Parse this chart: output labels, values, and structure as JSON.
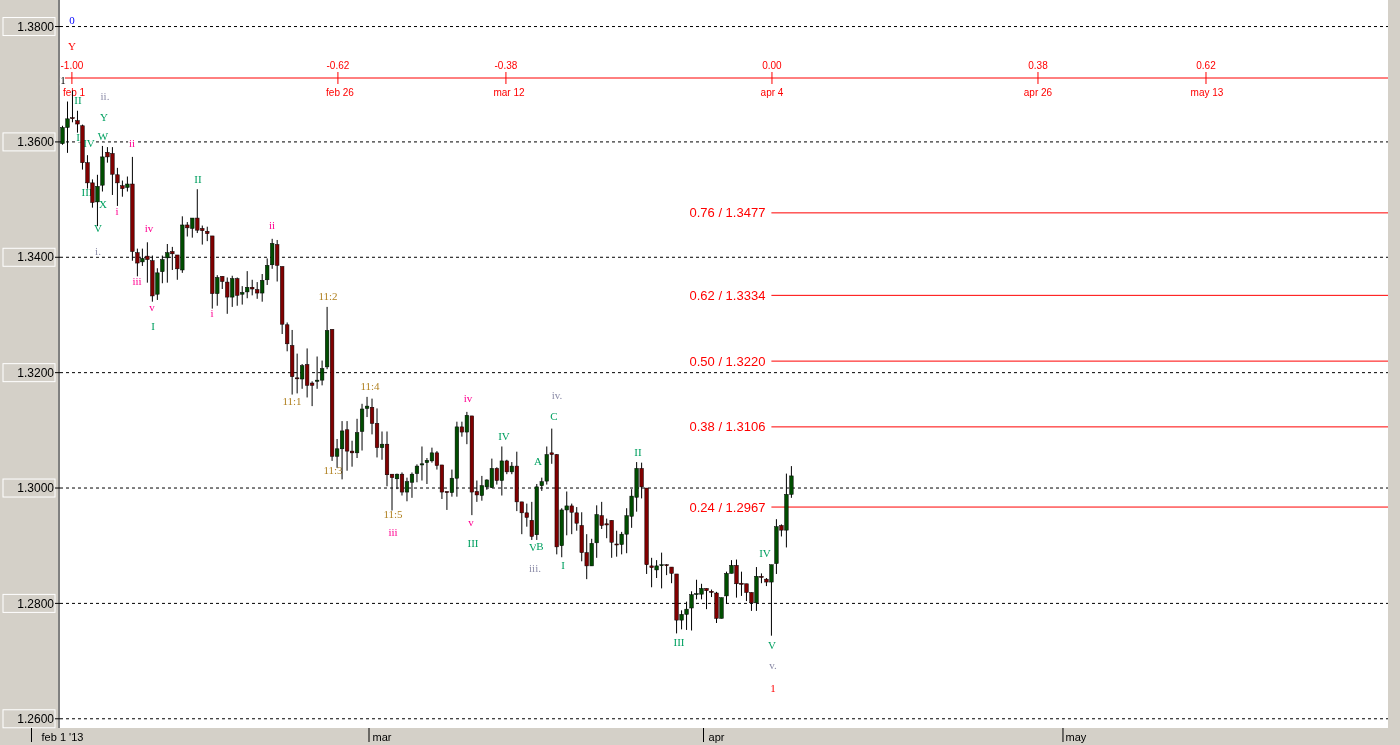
{
  "chart_data": {
    "type": "candlestick",
    "categories": [
      "feb 1 '13",
      null,
      null,
      null,
      null,
      null,
      null,
      null,
      null,
      null,
      null,
      null,
      null,
      null,
      null,
      null,
      null,
      null,
      null,
      null,
      null,
      null,
      null,
      null,
      null,
      null,
      null,
      null,
      null,
      null,
      null,
      null,
      null,
      null,
      null,
      null,
      null,
      null,
      null,
      null,
      null,
      null,
      null,
      null,
      null,
      null,
      null,
      null,
      null,
      null,
      null,
      null,
      null,
      null,
      null,
      null,
      null,
      null,
      null,
      null,
      null,
      null,
      null,
      null,
      "mar",
      null,
      null,
      null,
      null,
      null,
      null,
      null,
      null,
      null,
      null,
      null,
      null,
      null,
      null,
      null,
      null,
      null,
      null,
      null,
      null,
      null,
      null,
      null,
      null,
      null,
      null,
      null,
      null,
      null,
      null,
      null,
      null,
      null,
      null,
      null,
      null,
      null,
      null,
      null,
      null,
      null,
      null,
      null,
      null,
      null,
      null,
      null,
      null,
      null,
      null,
      null,
      null,
      null,
      null,
      null,
      null,
      null,
      null,
      null,
      null,
      null,
      null,
      null,
      null,
      null,
      null,
      "apr",
      null,
      null,
      null,
      null,
      null,
      null,
      null,
      null,
      null,
      null,
      null,
      null,
      null,
      null,
      null,
      null,
      null,
      null,
      null,
      null,
      null,
      null,
      null,
      null,
      null,
      null,
      null,
      null,
      null,
      null,
      null,
      null,
      null,
      null,
      null,
      null,
      null,
      null,
      null,
      null,
      null,
      null,
      null,
      null,
      null,
      null,
      null,
      null,
      null,
      null,
      null,
      null,
      null,
      null,
      null,
      null,
      null,
      null,
      null,
      null,
      null,
      null,
      null,
      null,
      null,
      null,
      null,
      null,
      null,
      null,
      null,
      "may",
      null,
      null,
      null,
      null,
      null,
      null,
      null,
      null,
      null,
      null,
      null,
      null,
      null,
      null,
      null,
      null,
      null,
      null,
      null,
      null,
      null,
      null,
      null,
      null,
      null,
      null,
      null,
      null,
      null,
      null,
      null,
      null,
      null,
      null,
      null,
      null,
      null,
      null,
      null,
      null,
      null,
      null,
      null,
      null,
      null,
      null,
      null,
      null,
      null,
      null,
      null,
      null,
      null,
      null,
      null,
      null,
      null,
      null,
      null,
      null,
      null,
      null
    ],
    "ohlc": [
      [
        1.3597,
        1.3628,
        1.3595,
        1.3625
      ],
      [
        1.3625,
        1.367,
        1.3581,
        1.364
      ],
      [
        1.3642,
        1.3689,
        1.3634,
        1.3641
      ],
      [
        1.3637,
        1.3654,
        1.3616,
        1.3631
      ],
      [
        1.3628,
        1.363,
        1.3552,
        1.3564
      ],
      [
        1.3564,
        1.3577,
        1.3519,
        1.3529
      ],
      [
        1.3529,
        1.3535,
        1.3486,
        1.3495
      ],
      [
        1.3496,
        1.3543,
        1.3454,
        1.3523
      ],
      [
        1.3525,
        1.3593,
        1.3514,
        1.3574
      ],
      [
        1.3582,
        1.3591,
        1.3564,
        1.3574
      ],
      [
        1.358,
        1.3591,
        1.3508,
        1.3544
      ],
      [
        1.3543,
        1.3555,
        1.3489,
        1.3529
      ],
      [
        1.3524,
        1.3533,
        1.3505,
        1.3519
      ],
      [
        1.3521,
        1.354,
        1.3514,
        1.3527
      ],
      [
        1.3527,
        1.3574,
        1.3394,
        1.341
      ],
      [
        1.3408,
        1.3415,
        1.3367,
        1.339
      ],
      [
        1.3392,
        1.3415,
        1.3385,
        1.3398
      ],
      [
        1.3402,
        1.3426,
        1.3356,
        1.3396
      ],
      [
        1.3394,
        1.3403,
        1.3323,
        1.3333
      ],
      [
        1.3336,
        1.3381,
        1.3326,
        1.3373
      ],
      [
        1.3375,
        1.3403,
        1.3355,
        1.3396
      ],
      [
        1.3399,
        1.3423,
        1.3356,
        1.3408
      ],
      [
        1.341,
        1.3418,
        1.3378,
        1.3406
      ],
      [
        1.3404,
        1.3404,
        1.3361,
        1.338
      ],
      [
        1.3378,
        1.3471,
        1.3373,
        1.3456
      ],
      [
        1.3456,
        1.3461,
        1.3436,
        1.3451
      ],
      [
        1.345,
        1.3468,
        1.3434,
        1.3468
      ],
      [
        1.3468,
        1.3518,
        1.3442,
        1.3447
      ],
      [
        1.345,
        1.3455,
        1.3422,
        1.3446
      ],
      [
        1.3445,
        1.3453,
        1.3428,
        1.3441
      ],
      [
        1.3437,
        1.3437,
        1.3311,
        1.3337
      ],
      [
        1.3337,
        1.3369,
        1.3316,
        1.3365
      ],
      [
        1.3367,
        1.3367,
        1.3345,
        1.3358
      ],
      [
        1.3357,
        1.3365,
        1.3302,
        1.3331
      ],
      [
        1.3331,
        1.3368,
        1.3314,
        1.3363
      ],
      [
        1.3363,
        1.3365,
        1.3316,
        1.3334
      ],
      [
        1.3336,
        1.335,
        1.3318,
        1.3339
      ],
      [
        1.334,
        1.3376,
        1.3329,
        1.3348
      ],
      [
        1.3348,
        1.3361,
        1.3334,
        1.3345
      ],
      [
        1.3344,
        1.3357,
        1.3328,
        1.3338
      ],
      [
        1.3338,
        1.3371,
        1.3323,
        1.336
      ],
      [
        1.3361,
        1.3398,
        1.3352,
        1.3386
      ],
      [
        1.3387,
        1.3432,
        1.338,
        1.3424
      ],
      [
        1.3422,
        1.343,
        1.3358,
        1.3386
      ],
      [
        1.3384,
        1.3384,
        1.3267,
        1.3284
      ],
      [
        1.3283,
        1.3287,
        1.3237,
        1.325
      ],
      [
        1.3247,
        1.3274,
        1.3162,
        1.3193
      ],
      [
        1.3191,
        1.3233,
        1.3164,
        1.319
      ],
      [
        1.3189,
        1.3215,
        1.3172,
        1.3212
      ],
      [
        1.3214,
        1.3242,
        1.3157,
        1.3178
      ],
      [
        1.3182,
        1.3185,
        1.3142,
        1.3178
      ],
      [
        1.3185,
        1.3228,
        1.3172,
        1.3187
      ],
      [
        1.3187,
        1.3221,
        1.3178,
        1.3207
      ],
      [
        1.321,
        1.3314,
        1.3206,
        1.3273
      ],
      [
        1.3275,
        1.3275,
        1.3047,
        1.3055
      ],
      [
        1.3055,
        1.3085,
        1.3035,
        1.3068
      ],
      [
        1.3068,
        1.3116,
        1.3015,
        1.3099
      ],
      [
        1.3101,
        1.3116,
        1.303,
        1.3064
      ],
      [
        1.3064,
        1.3082,
        1.3037,
        1.3061
      ],
      [
        1.3061,
        1.312,
        1.3052,
        1.3096
      ],
      [
        1.3098,
        1.3146,
        1.3065,
        1.3137
      ],
      [
        1.3138,
        1.3158,
        1.3123,
        1.3142
      ],
      [
        1.314,
        1.3155,
        1.3093,
        1.3112
      ],
      [
        1.3112,
        1.3138,
        1.3053,
        1.307
      ],
      [
        1.307,
        1.3098,
        1.3049,
        1.3076
      ],
      [
        1.3076,
        1.3098,
        1.3003,
        1.3023
      ],
      [
        1.3024,
        1.3024,
        1.2961,
        1.3018
      ],
      [
        1.3016,
        1.3025,
        1.2998,
        1.3024
      ],
      [
        1.3024,
        1.3027,
        1.2987,
        1.2993
      ],
      [
        1.2993,
        1.3018,
        1.2977,
        1.3011
      ],
      [
        1.301,
        1.3027,
        1.2983,
        1.3024
      ],
      [
        1.3025,
        1.3041,
        1.301,
        1.3038
      ],
      [
        1.304,
        1.3072,
        1.3013,
        1.3042
      ],
      [
        1.3044,
        1.3052,
        1.3007,
        1.3048
      ],
      [
        1.3047,
        1.307,
        1.3044,
        1.3061
      ],
      [
        1.3061,
        1.3064,
        1.3032,
        1.3039
      ],
      [
        1.304,
        1.304,
        1.2981,
        1.2993
      ],
      [
        1.2994,
        1.2994,
        1.2962,
        1.2992
      ],
      [
        1.2992,
        1.3032,
        1.2985,
        1.3017
      ],
      [
        1.3017,
        1.3115,
        1.2985,
        1.3106
      ],
      [
        1.3106,
        1.3115,
        1.3089,
        1.3097
      ],
      [
        1.3097,
        1.3132,
        1.3076,
        1.3126
      ],
      [
        1.3125,
        1.3125,
        1.2953,
        1.2993
      ],
      [
        1.2994,
        1.3013,
        1.2976,
        1.2988
      ],
      [
        1.2987,
        1.3021,
        1.2978,
        1.3004
      ],
      [
        1.3002,
        1.3015,
        1.2997,
        1.3014
      ],
      [
        1.3001,
        1.3051,
        1.3,
        1.3034
      ],
      [
        1.3034,
        1.3036,
        1.3006,
        1.3013
      ],
      [
        1.3013,
        1.3072,
        1.2987,
        1.3047
      ],
      [
        1.3047,
        1.3049,
        1.3024,
        1.3028
      ],
      [
        1.3028,
        1.3045,
        1.3024,
        1.3038
      ],
      [
        1.3038,
        1.3063,
        1.296,
        1.2976
      ],
      [
        1.2976,
        1.2976,
        1.292,
        1.2957
      ],
      [
        1.2957,
        1.2973,
        1.2933,
        1.2949
      ],
      [
        1.2944,
        1.2976,
        1.291,
        1.2916
      ],
      [
        1.2919,
        1.3007,
        1.291,
        1.3002
      ],
      [
        1.3004,
        1.3018,
        1.2995,
        1.3011
      ],
      [
        1.3012,
        1.3072,
        1.3006,
        1.3058
      ],
      [
        1.3061,
        1.3103,
        1.3042,
        1.3058
      ],
      [
        1.3058,
        1.3059,
        1.2885,
        1.2898
      ],
      [
        1.29,
        1.2965,
        1.288,
        1.2962
      ],
      [
        1.2962,
        1.2994,
        1.2918,
        1.2969
      ],
      [
        1.2969,
        1.2973,
        1.292,
        1.2958
      ],
      [
        1.2957,
        1.2967,
        1.2926,
        1.2939
      ],
      [
        1.2935,
        1.2958,
        1.2873,
        1.2888
      ],
      [
        1.2888,
        1.292,
        1.2842,
        1.2865
      ],
      [
        1.2865,
        1.2912,
        1.2865,
        1.2904
      ],
      [
        1.2905,
        1.297,
        1.2879,
        1.2954
      ],
      [
        1.2952,
        1.2976,
        1.2929,
        1.2935
      ],
      [
        1.2938,
        1.2947,
        1.2913,
        1.2936
      ],
      [
        1.2944,
        1.2944,
        1.2879,
        1.2906
      ],
      [
        1.2903,
        1.2926,
        1.2881,
        1.2902
      ],
      [
        1.2902,
        1.2924,
        1.2885,
        1.292
      ],
      [
        1.292,
        1.2965,
        1.2887,
        1.2952
      ],
      [
        1.2951,
        1.2998,
        1.2931,
        1.2986
      ],
      [
        1.2984,
        1.3045,
        1.2959,
        1.3034
      ],
      [
        1.3034,
        1.3044,
        1.2982,
        1.3002
      ],
      [
        1.3,
        1.3,
        1.2851,
        1.2867
      ],
      [
        1.2865,
        1.2879,
        1.2828,
        1.2862
      ],
      [
        1.2858,
        1.2875,
        1.2844,
        1.2865
      ],
      [
        1.2866,
        1.2888,
        1.2826,
        1.2867
      ],
      [
        1.2867,
        1.2868,
        1.2849,
        1.2866
      ],
      [
        1.2863,
        1.2863,
        1.2835,
        1.2852
      ],
      [
        1.2851,
        1.2851,
        1.2748,
        1.2771
      ],
      [
        1.2771,
        1.2788,
        1.2755,
        1.2781
      ],
      [
        1.2781,
        1.2803,
        1.2754,
        1.279
      ],
      [
        1.2792,
        1.2821,
        1.2753,
        1.2815
      ],
      [
        1.2816,
        1.2841,
        1.2807,
        1.2817
      ],
      [
        1.2816,
        1.2834,
        1.2807,
        1.2826
      ],
      [
        1.2826,
        1.2826,
        1.279,
        1.2822
      ],
      [
        1.2821,
        1.2824,
        1.2811,
        1.2819
      ],
      [
        1.2818,
        1.282,
        1.2766,
        1.2774
      ],
      [
        1.2774,
        1.281,
        1.2774,
        1.281
      ],
      [
        1.2813,
        1.2855,
        1.2799,
        1.2852
      ],
      [
        1.2852,
        1.2875,
        1.2852,
        1.2866
      ],
      [
        1.2866,
        1.2876,
        1.281,
        1.2834
      ],
      [
        1.2835,
        1.2855,
        1.2813,
        1.2833
      ],
      [
        1.2834,
        1.2834,
        1.2804,
        1.2819
      ],
      [
        1.2819,
        1.2819,
        1.2787,
        1.2801
      ],
      [
        1.2801,
        1.2863,
        1.2787,
        1.2847
      ],
      [
        1.2847,
        1.2852,
        1.2835,
        1.2845
      ],
      [
        1.2842,
        1.2844,
        1.283,
        1.2837
      ],
      [
        1.2837,
        1.2867,
        1.2744,
        1.2867
      ],
      [
        1.2869,
        1.2946,
        1.2851,
        1.2933
      ],
      [
        1.2935,
        1.2937,
        1.2916,
        1.2927
      ],
      [
        1.2927,
        1.3025,
        1.2897,
        1.2989
      ],
      [
        1.2989,
        1.3038,
        1.2983,
        1.3021
      ],
      null,
      null,
      null,
      null,
      null,
      null,
      null,
      null,
      null,
      null,
      null,
      null,
      null,
      null,
      null,
      null,
      null,
      null,
      null,
      null,
      null,
      null,
      null,
      null,
      null,
      null,
      null,
      null,
      null,
      null,
      null,
      null,
      null,
      null,
      null,
      null,
      null,
      null,
      null,
      null,
      null,
      null,
      null,
      null,
      null,
      null,
      null,
      null,
      null,
      null,
      null,
      null,
      null,
      null,
      null,
      null,
      null,
      null,
      null,
      null,
      null,
      null,
      null,
      null,
      null,
      null,
      null,
      null,
      null,
      null,
      null,
      null,
      null,
      null,
      null,
      null,
      null,
      null,
      null,
      null,
      null,
      null,
      null,
      null,
      null,
      null,
      null,
      null,
      null,
      null,
      null,
      null,
      null,
      null,
      null,
      null,
      null,
      null,
      null,
      null,
      null,
      null,
      null,
      null,
      null,
      null,
      null,
      null,
      null,
      null,
      null,
      null,
      null,
      null,
      null,
      null,
      null,
      null,
      null
    ],
    "x2lim": [
      -1.017,
      0.88
    ],
    "x2ticks": [
      {
        "value": -1,
        "label": "-1.00"
      },
      {
        "value": -0.62,
        "label": "-0.62"
      },
      {
        "value": -0.38,
        "label": "-0.38"
      },
      {
        "value": 0,
        "label": "0.00"
      },
      {
        "value": 0.38,
        "label": "0.38"
      },
      {
        "value": 0.62,
        "label": "0.62"
      }
    ],
    "ylim": [
      1.2584,
      1.3846
    ],
    "yticks": [
      {
        "value": 1.38,
        "label": "1.3800"
      },
      {
        "value": 1.36,
        "label": "1.3600"
      },
      {
        "value": 1.34,
        "label": "1.3400"
      },
      {
        "value": 1.32,
        "label": "1.3200"
      },
      {
        "value": 1.3,
        "label": "1.3000"
      },
      {
        "value": 1.28,
        "label": "1.2800"
      },
      {
        "value": 1.26,
        "label": "1.2600"
      }
    ],
    "grid": "y",
    "ref_lines": [
      {
        "axis": "y",
        "value": 1.3477,
        "label": "0.76 / 1.3477",
        "color": "#ff0000"
      },
      {
        "axis": "y",
        "value": 1.3334,
        "label": "0.62 / 1.3334",
        "color": "#ff0000"
      },
      {
        "axis": "y",
        "value": 1.322,
        "label": "0.50 / 1.3220",
        "color": "#ff0000"
      },
      {
        "axis": "y",
        "value": 1.3106,
        "label": "0.38 / 1.3106",
        "color": "#ff0000"
      },
      {
        "axis": "y",
        "value": 1.2967,
        "label": "0.24 / 1.2967",
        "color": "#ff0000"
      }
    ],
    "annotations": [
      "0",
      "Y",
      "1",
      "ii.",
      "II",
      "Y",
      "W",
      "I",
      "IV",
      "ii",
      "III",
      "X",
      "i",
      "V",
      "i.",
      "II",
      "iv",
      "ii",
      "iii",
      "v",
      "I",
      "i",
      "11:2",
      "11:1",
      "11:4",
      "11:3",
      "11:5",
      "iii",
      "iv",
      "v",
      "III",
      "IV",
      "iv.",
      "C",
      "A",
      "V",
      "B",
      "iii.",
      "I",
      "II",
      "III",
      "IV",
      "V",
      "v.",
      "1",
      "feb 1",
      "feb 26",
      "mar 12",
      "apr 4",
      "apr 26",
      "may 13"
    ]
  }
}
